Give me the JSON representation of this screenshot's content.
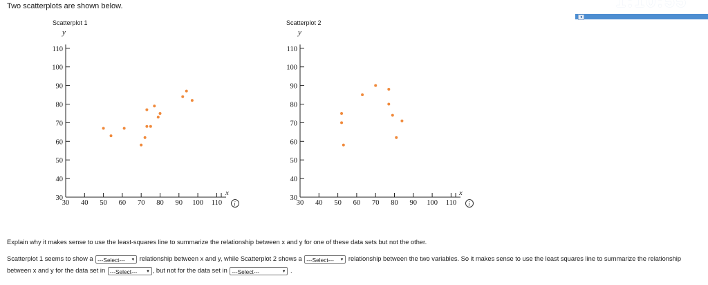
{
  "intro": "Two scatterplots are shown below.",
  "timer": "1:10:55",
  "scatterplot_1": {
    "title": "Scatterplot 1",
    "x_label": "x",
    "y_label": "y"
  },
  "scatterplot_2": {
    "title": "Scatterplot 2",
    "x_label": "x",
    "y_label": "y"
  },
  "chart_data": [
    {
      "type": "scatter",
      "title": "Scatterplot 1",
      "xlabel": "x",
      "ylabel": "y",
      "xlim": [
        30,
        115
      ],
      "ylim": [
        30,
        112
      ],
      "x_ticks": [
        "30",
        "40",
        "50",
        "60",
        "70",
        "80",
        "90",
        "100",
        "110"
      ],
      "y_ticks": [
        "30",
        "40",
        "50",
        "60",
        "70",
        "80",
        "90",
        "100",
        "110"
      ],
      "points": [
        [
          50,
          67
        ],
        [
          54,
          63
        ],
        [
          61,
          67
        ],
        [
          70,
          58
        ],
        [
          72,
          62
        ],
        [
          73,
          68
        ],
        [
          73,
          77
        ],
        [
          75,
          68
        ],
        [
          77,
          79
        ],
        [
          79,
          73
        ],
        [
          80,
          75
        ],
        [
          92,
          84
        ],
        [
          94,
          87
        ],
        [
          97,
          82
        ]
      ]
    },
    {
      "type": "scatter",
      "title": "Scatterplot 2",
      "xlabel": "x",
      "ylabel": "y",
      "xlim": [
        30,
        115
      ],
      "ylim": [
        30,
        112
      ],
      "x_ticks": [
        "30",
        "40",
        "50",
        "60",
        "70",
        "80",
        "90",
        "100",
        "110"
      ],
      "y_ticks": [
        "30",
        "40",
        "50",
        "60",
        "70",
        "80",
        "90",
        "100",
        "110"
      ],
      "points": [
        [
          52,
          75
        ],
        [
          52,
          70
        ],
        [
          53,
          58
        ],
        [
          63,
          85
        ],
        [
          70,
          90
        ],
        [
          77,
          80
        ],
        [
          77,
          88
        ],
        [
          79,
          74
        ],
        [
          81,
          62
        ],
        [
          84,
          71
        ]
      ]
    }
  ],
  "question": "Explain why it makes sense to use the least-squares line to summarize the relationship between x and y for one of these data sets but not the other.",
  "answer": {
    "part1": "Scatterplot 1 seems to show a",
    "part2": "relationship between x and y, while Scatterplot 2 shows a",
    "part3": "relationship between the two variables. So it makes sense to use the least squares line to summarize the relationship between x and y for the data set in",
    "part4": ", but not for the data set in",
    "part5": ".",
    "select_placeholder": "---Select---"
  }
}
